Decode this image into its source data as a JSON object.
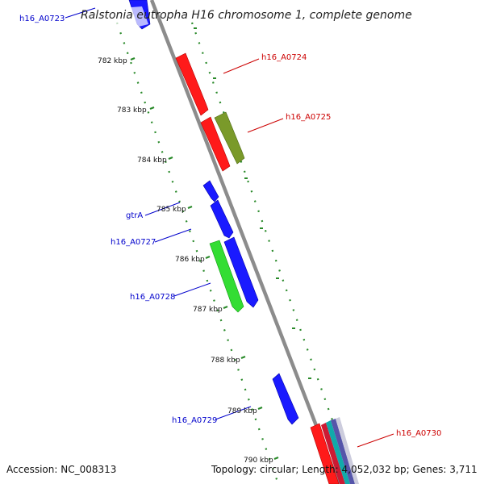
{
  "title": "Ralstonia eutropha H16 chromosome 1, complete genome",
  "footer": {
    "accession": "Accession: NC_008313",
    "topology": "Topology: circular; Length: 4,052,032 bp; Genes: 3,711"
  },
  "ticks": [
    "782 kbp",
    "783 kbp",
    "784 kbp",
    "785 kbp",
    "786 kbp",
    "787 kbp",
    "788 kbp",
    "789 kbp",
    "790 kbp"
  ],
  "genes": [
    {
      "name": "h16_A0723",
      "color": "#0000cc"
    },
    {
      "name": "h16_A0724",
      "color": "#cc0000"
    },
    {
      "name": "h16_A0725",
      "color": "#cc0000"
    },
    {
      "name": "gtrA",
      "color": "#0000cc"
    },
    {
      "name": "h16_A0727",
      "color": "#0000cc"
    },
    {
      "name": "h16_A0728",
      "color": "#0000cc"
    },
    {
      "name": "h16_A0729",
      "color": "#0000cc"
    },
    {
      "name": "h16_A0730",
      "color": "#cc0000"
    }
  ],
  "colors": {
    "backbone": "#8c8c8c",
    "tick_dots": "#2a8a2a",
    "red_cds": "#ff1a1a",
    "blue_cds": "#1a1aff",
    "olive_cds": "#7a9a2a",
    "green_cds": "#33dd33"
  }
}
